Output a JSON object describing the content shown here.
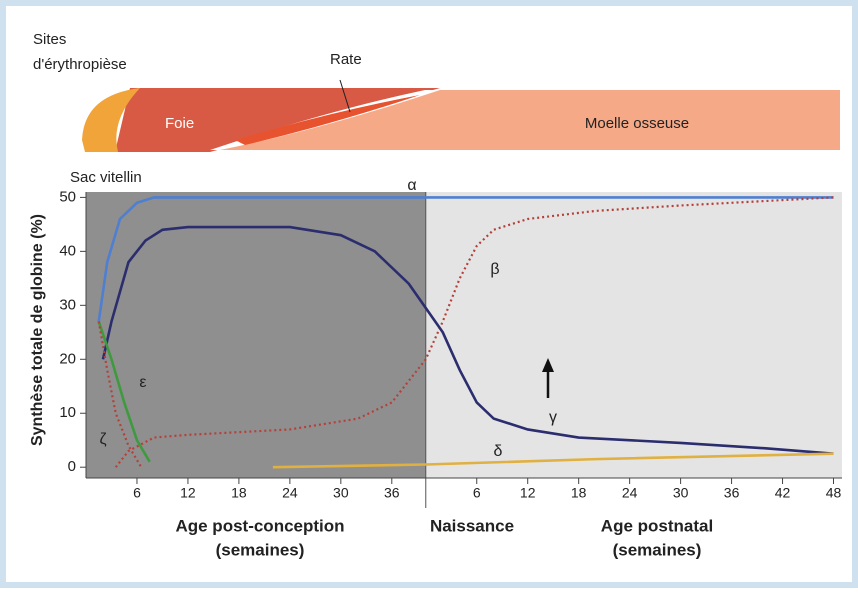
{
  "header": {
    "title_lines": [
      "Sites",
      "d'érythropièse"
    ],
    "spleen": "Rate",
    "liver": "Foie",
    "marrow": "Moelle osseuse",
    "yolk_sac": "Sac vitellin"
  },
  "chart_data": {
    "type": "line",
    "y_label": "Synthèse totale de globine (%)",
    "x_labels": {
      "prenatal": [
        "Age post-conception",
        "(semaines)"
      ],
      "birth": "Naissance",
      "postnatal": [
        "Age postnatal",
        "(semaines)"
      ]
    },
    "birth_x": 40,
    "xlim": [
      0,
      89
    ],
    "ylim": [
      -2,
      51
    ],
    "yticks": [
      0,
      10,
      20,
      30,
      40,
      50
    ],
    "xticks": [
      6,
      12,
      18,
      24,
      30,
      36,
      {
        "value": 46,
        "label": "6"
      },
      {
        "value": 52,
        "label": "12"
      },
      {
        "value": 58,
        "label": "18"
      },
      {
        "value": 64,
        "label": "24"
      },
      {
        "value": 70,
        "label": "30"
      },
      {
        "value": 76,
        "label": "36"
      },
      {
        "value": 82,
        "label": "42"
      },
      {
        "value": 88,
        "label": "48"
      }
    ],
    "series": [
      {
        "name": "α",
        "color": "#4f7fd0",
        "style": "solid",
        "x": [
          1.5,
          2.5,
          4,
          6,
          8,
          88
        ],
        "values": [
          27,
          38,
          46,
          49,
          50,
          50
        ]
      },
      {
        "name": "β",
        "color": "#b5403a",
        "style": "dotted",
        "x": [
          3.5,
          5,
          8,
          12,
          24,
          32,
          36,
          40,
          42,
          44,
          46,
          48,
          52,
          60,
          70,
          88
        ],
        "values": [
          0,
          3,
          5.5,
          6,
          7,
          9,
          12,
          20,
          27,
          35,
          41,
          44,
          46,
          47.5,
          48.5,
          50
        ]
      },
      {
        "name": "γ",
        "color": "#2b2d6e",
        "style": "solid",
        "x": [
          2,
          3,
          5,
          7,
          9,
          12,
          24,
          30,
          34,
          38,
          42,
          44,
          46,
          48,
          52,
          58,
          70,
          80,
          88
        ],
        "values": [
          20,
          27,
          38,
          42,
          44,
          44.5,
          44.5,
          43,
          40,
          34,
          25,
          18,
          12,
          9,
          7,
          5.5,
          4.5,
          3.5,
          2.5
        ]
      },
      {
        "name": "δ",
        "color": "#e0b040",
        "style": "solid",
        "x": [
          22,
          40,
          60,
          88
        ],
        "values": [
          0,
          0.5,
          1.5,
          2.5
        ]
      },
      {
        "name": "ε",
        "color": "#3f9a3f",
        "style": "solid",
        "x": [
          1.5,
          3,
          4.5,
          6,
          7.5
        ],
        "values": [
          27,
          20,
          12,
          5,
          1
        ]
      },
      {
        "name": "ζ",
        "color": "#b5403a",
        "style": "dotted",
        "x": [
          1.5,
          2.5,
          3.5,
          5,
          6.5
        ],
        "values": [
          27,
          18,
          10,
          4,
          0
        ]
      }
    ]
  }
}
